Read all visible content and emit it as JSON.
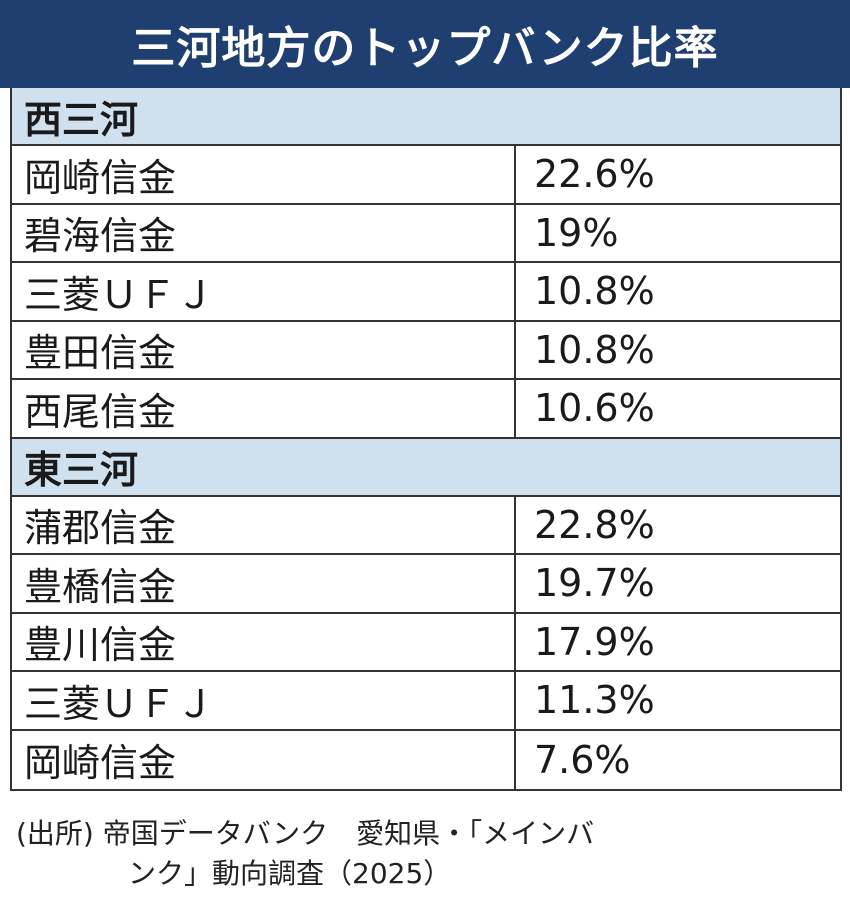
{
  "title": "三河地方のトップバンク比率",
  "chart_data": {
    "type": "table",
    "title": "三河地方のトップバンク比率",
    "groups": [
      {
        "name": "西三河",
        "rows": [
          {
            "bank": "岡崎信金",
            "value": 22.6,
            "label": "22.6%"
          },
          {
            "bank": "碧海信金",
            "value": 19,
            "label": "19%"
          },
          {
            "bank": "三菱ＵＦＪ",
            "value": 10.8,
            "label": "10.8%"
          },
          {
            "bank": "豊田信金",
            "value": 10.8,
            "label": "10.8%"
          },
          {
            "bank": "西尾信金",
            "value": 10.6,
            "label": "10.6%"
          }
        ]
      },
      {
        "name": "東三河",
        "rows": [
          {
            "bank": "蒲郡信金",
            "value": 22.8,
            "label": "22.8%"
          },
          {
            "bank": "豊橋信金",
            "value": 19.7,
            "label": "19.7%"
          },
          {
            "bank": "豊川信金",
            "value": 17.9,
            "label": "17.9%"
          },
          {
            "bank": "三菱ＵＦＪ",
            "value": 11.3,
            "label": "11.3%"
          },
          {
            "bank": "岡崎信金",
            "value": 7.6,
            "label": "7.6%"
          }
        ]
      }
    ]
  },
  "source": {
    "line1": "(出所) 帝国データバンク　愛知県・「メインバ",
    "line2": "ンク」動向調査（2025）"
  },
  "colors": {
    "title_bg": "#1e3f70",
    "group_bg": "#cfe0ef",
    "border": "#333333"
  }
}
